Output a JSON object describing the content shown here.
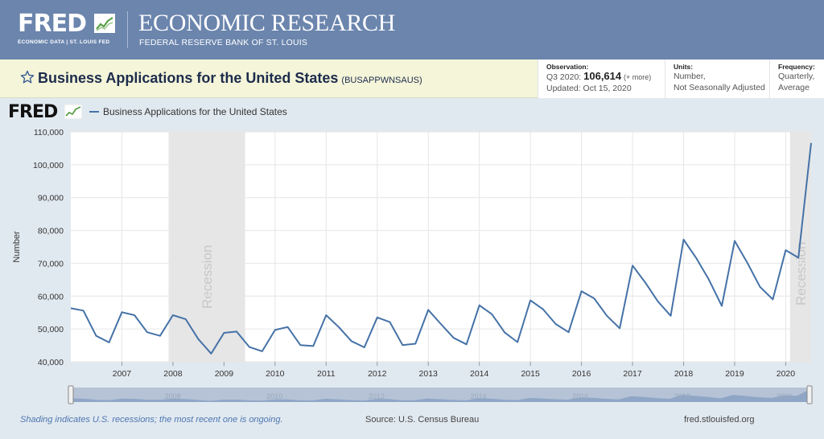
{
  "header": {
    "logo": "FRED",
    "logo_sub": "ECONOMIC DATA  |  ST. LOUIS FED",
    "title": "ECONOMIC RESEARCH",
    "subtitle": "FEDERAL RESERVE BANK OF ST. LOUIS"
  },
  "series": {
    "title": "Business Applications for the United States",
    "id": "(BUSAPPWNSAUS)"
  },
  "meta": {
    "observation_label": "Observation:",
    "observation_period": "Q3 2020:",
    "observation_value": "106,614",
    "observation_more": "(+ more)",
    "updated": "Updated: Oct 15, 2020",
    "units_label": "Units:",
    "units_line1": "Number,",
    "units_line2": "Not Seasonally Adjusted",
    "frequency_label": "Frequency:",
    "frequency_line1": "Quarterly,",
    "frequency_line2": "Average"
  },
  "footer": {
    "shading_note": "Shading indicates U.S. recessions; the most recent one is ongoing.",
    "source": "Source: U.S. Census Bureau",
    "site": "fred.stlouisfed.org"
  },
  "colors": {
    "header_bg": "#6b85ad",
    "series_line": "#4572a7",
    "recession_shade": "#e6e6e6",
    "title_bar": "#f4f5d9"
  },
  "icons": [
    "star-icon",
    "fred-graph-icon"
  ],
  "chart_data": {
    "type": "line",
    "logo": "FRED",
    "legend": [
      "Business Applications for the United States"
    ],
    "ylabel": "Number",
    "ylim": [
      40000,
      110000
    ],
    "yticks": [
      "40,000",
      "50,000",
      "60,000",
      "70,000",
      "80,000",
      "90,000",
      "100,000",
      "110,000"
    ],
    "xticks": [
      "2007",
      "2008",
      "2009",
      "2010",
      "2011",
      "2012",
      "2013",
      "2014",
      "2015",
      "2016",
      "2017",
      "2018",
      "2019",
      "2020"
    ],
    "xlim": [
      "2006-01-01",
      "2020-07-01"
    ],
    "recession_label": "Recession",
    "recessions": [
      [
        "2007-12-01",
        "2009-06-01"
      ],
      [
        "2020-02-01",
        "2020-07-01"
      ]
    ],
    "navigator_ticks": [
      "2008",
      "2010",
      "2012",
      "2014",
      "2016",
      "2018",
      "2020"
    ],
    "series": [
      {
        "name": "Business Applications for the United States",
        "x": [
          "2006-01-01",
          "2006-04-01",
          "2006-07-01",
          "2006-10-01",
          "2007-01-01",
          "2007-04-01",
          "2007-07-01",
          "2007-10-01",
          "2008-01-01",
          "2008-04-01",
          "2008-07-01",
          "2008-10-01",
          "2009-01-01",
          "2009-04-01",
          "2009-07-01",
          "2009-10-01",
          "2010-01-01",
          "2010-04-01",
          "2010-07-01",
          "2010-10-01",
          "2011-01-01",
          "2011-04-01",
          "2011-07-01",
          "2011-10-01",
          "2012-01-01",
          "2012-04-01",
          "2012-07-01",
          "2012-10-01",
          "2013-01-01",
          "2013-04-01",
          "2013-07-01",
          "2013-10-01",
          "2014-01-01",
          "2014-04-01",
          "2014-07-01",
          "2014-10-01",
          "2015-01-01",
          "2015-04-01",
          "2015-07-01",
          "2015-10-01",
          "2016-01-01",
          "2016-04-01",
          "2016-07-01",
          "2016-10-01",
          "2017-01-01",
          "2017-04-01",
          "2017-07-01",
          "2017-10-01",
          "2018-01-01",
          "2018-04-01",
          "2018-07-01",
          "2018-10-01",
          "2019-01-01",
          "2019-04-01",
          "2019-07-01",
          "2019-10-01",
          "2020-01-01",
          "2020-04-01",
          "2020-07-01"
        ],
        "values": [
          56300,
          55600,
          47900,
          45900,
          55100,
          54200,
          49000,
          47900,
          54200,
          53000,
          46900,
          42500,
          48800,
          49200,
          44500,
          43200,
          49700,
          50600,
          45100,
          44800,
          54200,
          50600,
          46300,
          44400,
          53500,
          52100,
          45100,
          45500,
          55800,
          51500,
          47300,
          45300,
          57200,
          54500,
          48900,
          46000,
          58700,
          56000,
          51500,
          49000,
          61500,
          59300,
          54000,
          50200,
          69300,
          64200,
          58400,
          54000,
          77200,
          71600,
          65000,
          57000,
          76800,
          70200,
          62800,
          59000,
          74000,
          71700,
          106614
        ]
      }
    ]
  }
}
